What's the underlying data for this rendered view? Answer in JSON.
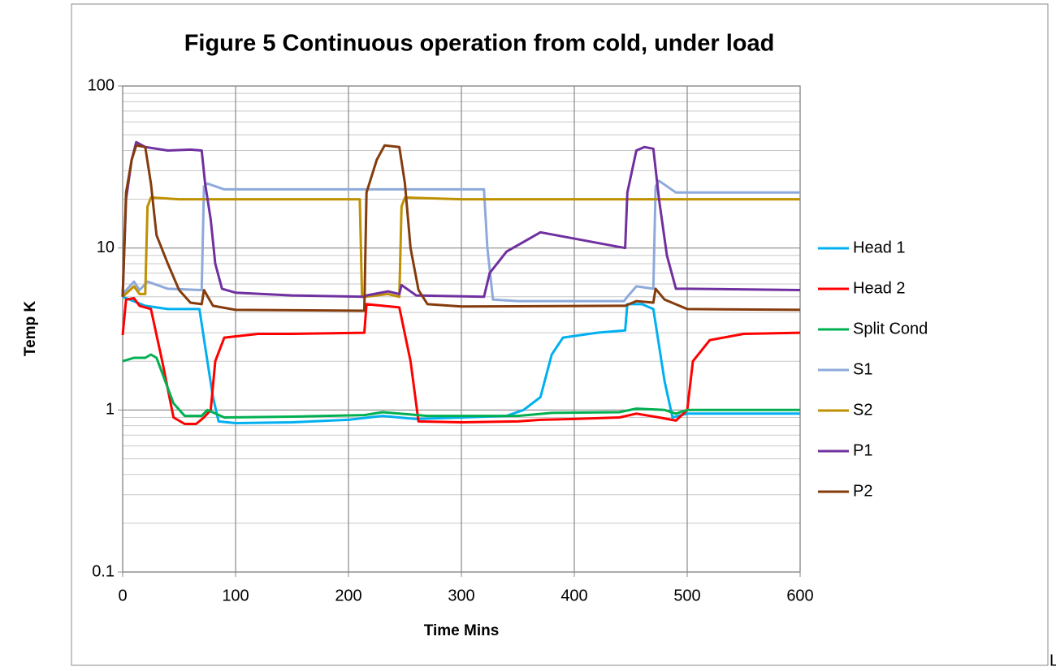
{
  "chart_data": {
    "type": "line",
    "title": "Figure 5 Continuous operation from cold, under load",
    "x_label": "Time Mins",
    "y_label": "Temp K",
    "xlim": [
      0,
      600
    ],
    "xticks": [
      0,
      100,
      200,
      300,
      400,
      500,
      600
    ],
    "ylim": [
      0.1,
      100
    ],
    "yticks": [
      0.1,
      1,
      10,
      100
    ],
    "log_y": true,
    "grid": true,
    "minor_grid": true,
    "legend": "right",
    "series": [
      {
        "name": "Head 1",
        "color": "#00b0f0",
        "x": [
          0,
          20,
          40,
          68,
          75,
          80,
          85,
          100,
          150,
          200,
          230,
          260,
          300,
          340,
          355,
          370,
          380,
          390,
          420,
          445,
          447,
          460,
          470,
          480,
          487,
          500,
          600
        ],
        "values": [
          5,
          4.4,
          4.2,
          4.2,
          2,
          1.2,
          0.85,
          0.83,
          0.84,
          0.87,
          0.92,
          0.88,
          0.9,
          0.92,
          1.0,
          1.2,
          2.2,
          2.8,
          3.0,
          3.1,
          4.5,
          4.5,
          4.2,
          1.5,
          0.9,
          0.95,
          0.95
        ]
      },
      {
        "name": "Head 2",
        "color": "#ff0000",
        "x": [
          0,
          3,
          10,
          15,
          25,
          35,
          45,
          55,
          65,
          72,
          78,
          82,
          90,
          120,
          150,
          214,
          216,
          245,
          255,
          262,
          300,
          350,
          370,
          400,
          440,
          455,
          475,
          490,
          500,
          505,
          520,
          550,
          600
        ],
        "values": [
          2.9,
          4.8,
          4.9,
          4.4,
          4.2,
          2,
          0.9,
          0.82,
          0.82,
          0.9,
          1.0,
          2,
          2.8,
          2.95,
          2.95,
          3.0,
          4.5,
          4.3,
          2,
          0.85,
          0.84,
          0.85,
          0.87,
          0.88,
          0.9,
          0.95,
          0.9,
          0.86,
          1.0,
          2,
          2.7,
          2.95,
          3.0
        ]
      },
      {
        "name": "Split Cond",
        "color": "#00b050",
        "x": [
          0,
          10,
          20,
          25,
          30,
          45,
          55,
          70,
          75,
          90,
          150,
          214,
          230,
          270,
          350,
          380,
          440,
          455,
          480,
          490,
          500,
          600
        ],
        "values": [
          2,
          2.1,
          2.1,
          2.2,
          2.1,
          1.1,
          0.92,
          0.92,
          1.0,
          0.9,
          0.91,
          0.93,
          0.97,
          0.92,
          0.92,
          0.96,
          0.97,
          1.02,
          1.0,
          0.95,
          1.0,
          1.0
        ]
      },
      {
        "name": "S1",
        "color": "#8eaadb",
        "x": [
          0,
          10,
          15,
          22,
          40,
          70,
          72,
          75,
          90,
          150,
          320,
          323,
          328,
          350,
          444,
          447,
          455,
          470,
          472,
          475,
          490,
          600
        ],
        "values": [
          5.2,
          6.2,
          5.5,
          6.2,
          5.6,
          5.5,
          24,
          25,
          23,
          23,
          23,
          10,
          4.8,
          4.7,
          4.7,
          5,
          5.8,
          5.6,
          24,
          26,
          22,
          22
        ]
      },
      {
        "name": "S2",
        "color": "#bf9000",
        "x": [
          0,
          10,
          15,
          20,
          22,
          25,
          50,
          210,
          212,
          215,
          235,
          245,
          247,
          250,
          300,
          600
        ],
        "values": [
          5,
          5.8,
          5.2,
          5.2,
          18,
          20.5,
          20,
          20,
          5,
          5,
          5.2,
          5,
          18,
          20.5,
          20,
          20
        ]
      },
      {
        "name": "P1",
        "color": "#7030a0",
        "x": [
          0,
          3,
          8,
          12,
          20,
          40,
          60,
          70,
          73,
          78,
          82,
          88,
          100,
          150,
          214,
          216,
          235,
          245,
          247,
          260,
          320,
          325,
          340,
          370,
          445,
          447,
          455,
          462,
          470,
          475,
          482,
          490,
          500,
          600
        ],
        "values": [
          5,
          20,
          35,
          45,
          42,
          40,
          40.5,
          40,
          25,
          15,
          8,
          5.6,
          5.3,
          5.1,
          5.0,
          5.1,
          5.4,
          5.2,
          5.9,
          5.1,
          5.0,
          7,
          9.5,
          12.5,
          10,
          22,
          40,
          42,
          41,
          20,
          9,
          5.6,
          5.6,
          5.5
        ]
      },
      {
        "name": "P2",
        "color": "#843c0c",
        "x": [
          0,
          3,
          8,
          12,
          20,
          25,
          30,
          40,
          50,
          60,
          70,
          72,
          80,
          100,
          214,
          216,
          225,
          232,
          245,
          250,
          255,
          262,
          270,
          300,
          445,
          455,
          470,
          472,
          480,
          500,
          600
        ],
        "values": [
          5,
          22,
          35,
          43,
          42,
          25,
          12,
          8,
          5.5,
          4.6,
          4.5,
          5.5,
          4.4,
          4.15,
          4.1,
          22,
          35,
          43,
          42,
          25,
          10,
          5.5,
          4.5,
          4.35,
          4.4,
          4.7,
          4.6,
          5.6,
          4.8,
          4.2,
          4.15
        ]
      }
    ]
  },
  "trailing_text": "Left"
}
